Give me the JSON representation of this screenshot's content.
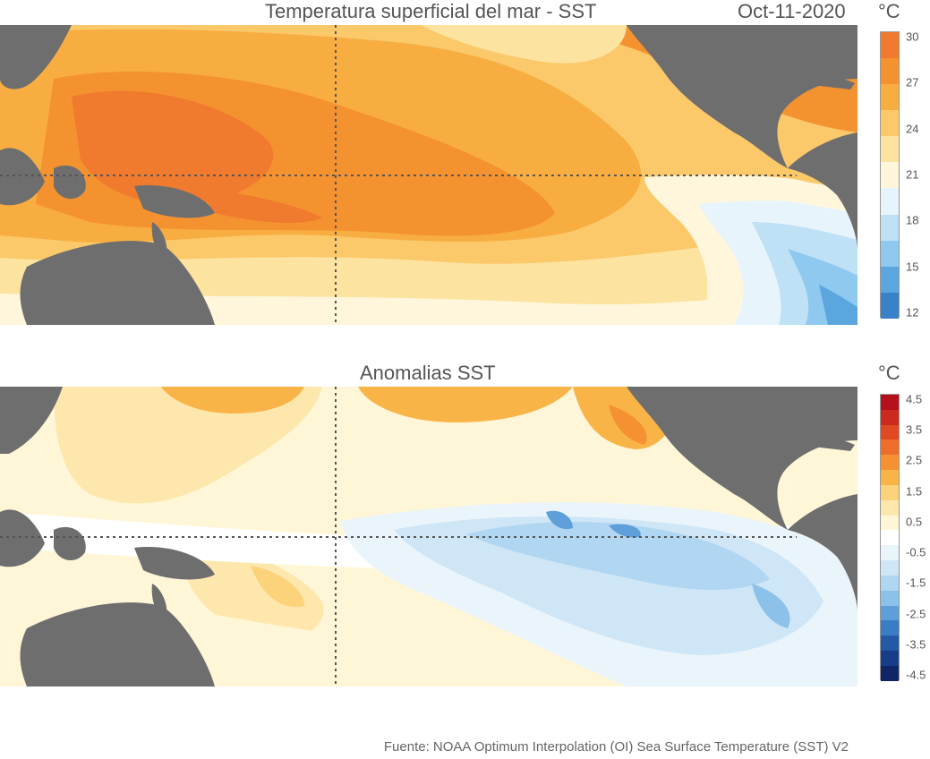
{
  "sst": {
    "title": "Temperatura superficial del mar - SST",
    "date": "Oct-11-2020",
    "unit": "°C",
    "colorbar": {
      "ticks": [
        "30",
        "27",
        "24",
        "21",
        "18",
        "15",
        "12"
      ],
      "colors": [
        "#f07a2d",
        "#f4922f",
        "#f8ad41",
        "#fbc86a",
        "#fde3a0",
        "#fff6dc",
        "#e8f4fb",
        "#bfe1f5",
        "#8fc9ef",
        "#5ba6de",
        "#3a82c8"
      ]
    }
  },
  "anomaly": {
    "title": "Anomalias SST",
    "unit": "°C",
    "colorbar": {
      "ticks": [
        "4.5",
        "3.5",
        "2.5",
        "1.5",
        "0.5",
        "-0.5",
        "-1.5",
        "-2.5",
        "-3.5",
        "-4.5"
      ],
      "colors": [
        "#b5111c",
        "#cc2a1e",
        "#e04a22",
        "#ee6d2a",
        "#f69133",
        "#f9b447",
        "#fcd27a",
        "#fde7ad",
        "#fff6d8",
        "#ffffff",
        "#eaf4fb",
        "#cfe6f6",
        "#b0d6f1",
        "#8cc2ea",
        "#5f9fd9",
        "#3a7dc4",
        "#2459a8",
        "#173c88",
        "#0f2566"
      ]
    }
  },
  "source": "Fuente: NOAA Optimum Interpolation (OI) Sea Surface Temperature (SST) V2"
}
